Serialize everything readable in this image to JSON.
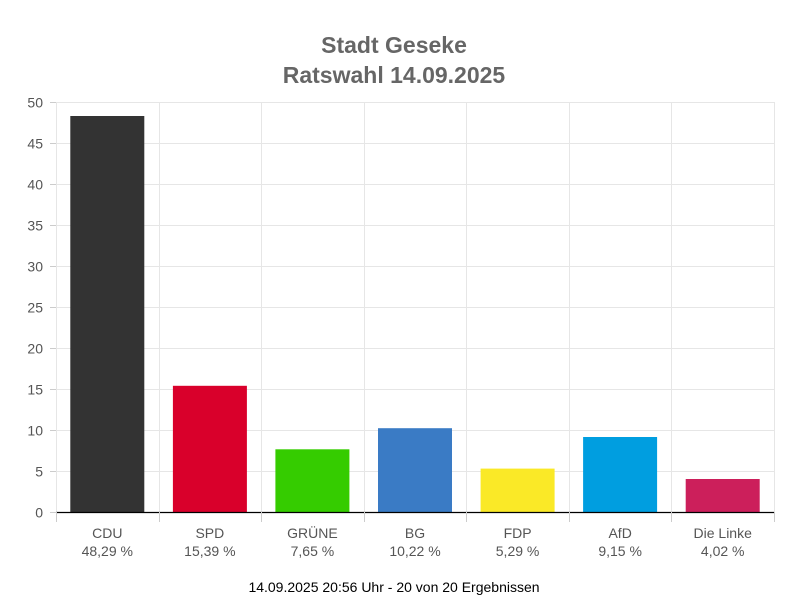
{
  "chart_data": {
    "type": "bar",
    "title": "Stadt Geseke",
    "subtitle": "Ratswahl 14.09.2025",
    "categories": [
      "CDU",
      "SPD",
      "GRÜNE",
      "BG",
      "FDP",
      "AfD",
      "Die Linke"
    ],
    "values": [
      48.29,
      15.39,
      7.65,
      10.22,
      5.29,
      9.15,
      4.02
    ],
    "value_labels": [
      "48,29 %",
      "15,39 %",
      "7,65 %",
      "10,22 %",
      "5,29 %",
      "9,15 %",
      "4,02 %"
    ],
    "colors": [
      "#333333",
      "#D9002B",
      "#35CC00",
      "#3A7BC5",
      "#FAE927",
      "#009EE0",
      "#CC1F5B"
    ],
    "ylim": [
      0,
      50
    ],
    "yticks": [
      0,
      5,
      10,
      15,
      20,
      25,
      30,
      35,
      40,
      45,
      50
    ],
    "grid": true,
    "xlabel": "",
    "ylabel": ""
  },
  "footer": "14.09.2025 20:56 Uhr - 20 von 20 Ergebnissen"
}
